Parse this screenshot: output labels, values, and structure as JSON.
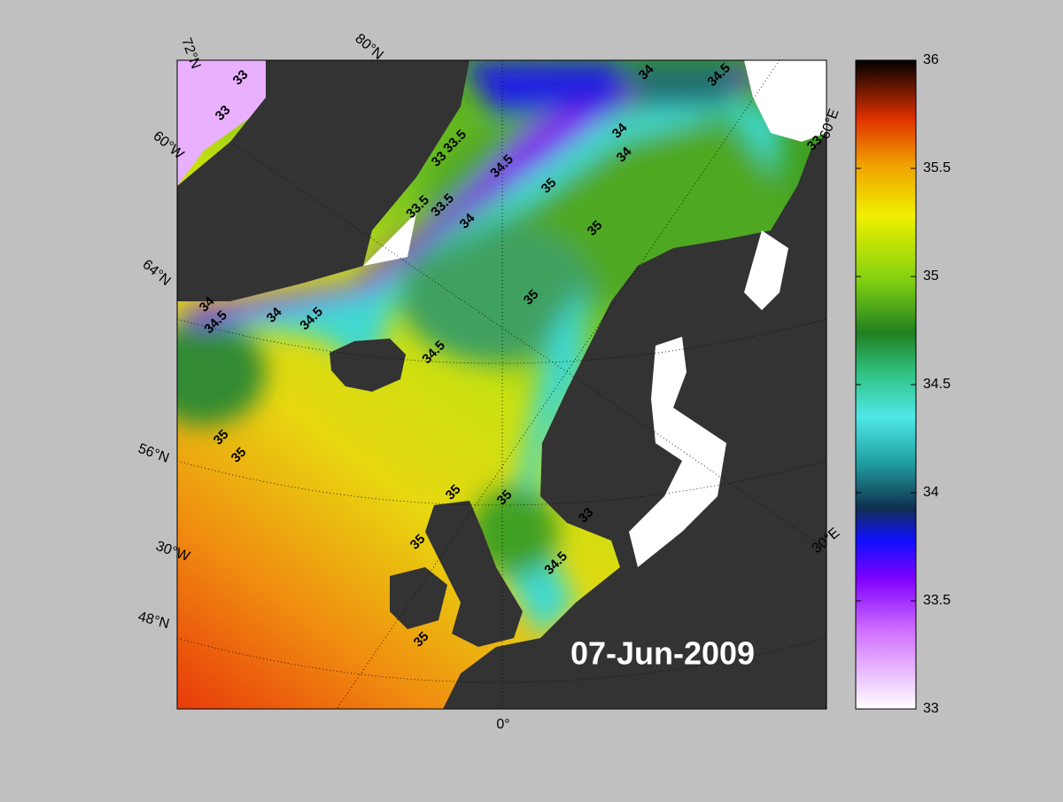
{
  "map": {
    "date_label": "07-Jun-2009",
    "graticule_labels": [
      "72°N",
      "80°N",
      "60°W",
      "64°N",
      "56°N",
      "30°W",
      "48°N",
      "0°",
      "30°E",
      "60°E"
    ],
    "contour_labels": [
      "33",
      "33",
      "33",
      "33.5",
      "33.5",
      "33.5",
      "34",
      "34.5",
      "34",
      "34",
      "34.5",
      "35",
      "35",
      "35",
      "34.5",
      "34.5",
      "35",
      "35",
      "35",
      "35",
      "35",
      "35",
      "34.5",
      "34",
      "34",
      "34.5",
      "34",
      "33",
      "33"
    ]
  },
  "colorbar": {
    "lim": [
      33,
      36
    ],
    "ticks": [
      33,
      33.5,
      34,
      34.5,
      35,
      35.5,
      36
    ]
  }
}
